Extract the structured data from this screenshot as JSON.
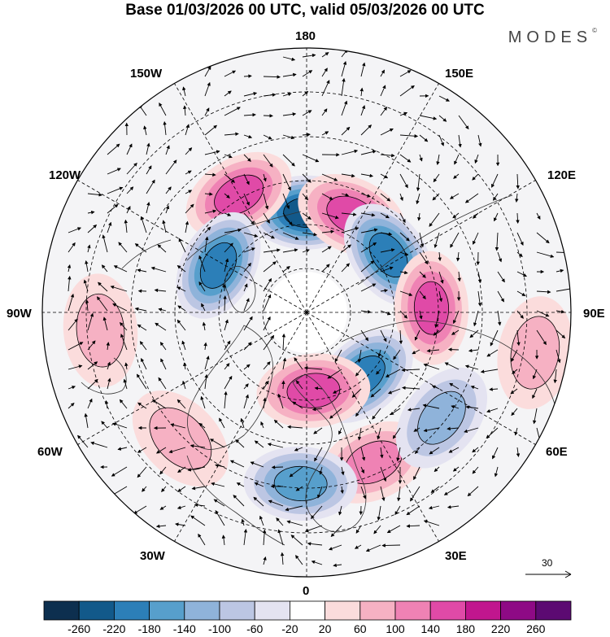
{
  "title": "Base 01/03/2026 00 UTC, valid 05/03/2026 00 UTC",
  "brand": {
    "name": "MODES",
    "mark": "©"
  },
  "longitude_labels": {
    "deg180": "180",
    "deg150w": "150W",
    "deg150e": "150E",
    "deg120w": "120W",
    "deg120e": "120E",
    "deg90w": "90W",
    "deg90e": "90E",
    "deg60w": "60W",
    "deg60e": "60E",
    "deg30w": "30W",
    "deg30e": "30E",
    "deg0": "0"
  },
  "reference_vector": {
    "value": "30"
  },
  "colorbar": {
    "labels": [
      "-260",
      "-220",
      "-180",
      "-140",
      "-100",
      "-60",
      "-20",
      "20",
      "60",
      "100",
      "140",
      "180",
      "220",
      "260"
    ],
    "colors": [
      "#0d2f4f",
      "#12598a",
      "#2c7fb8",
      "#579fcc",
      "#8fb3da",
      "#bcc6e3",
      "#e4e3f1",
      "#ffffff",
      "#fbdcdc",
      "#f6b1c3",
      "#ef82b4",
      "#e04aa7",
      "#c1168e",
      "#8e0a85",
      "#5c0a72"
    ]
  },
  "anomaly_centers": [
    {
      "id": "neg-pacific-north",
      "sign": "negative",
      "strength": -220,
      "lon": 180,
      "lat": 62
    },
    {
      "id": "pos-bering-east",
      "sign": "positive",
      "strength": 140,
      "lon": 155,
      "lat": 60
    },
    {
      "id": "pos-gulf-alaska",
      "sign": "positive",
      "strength": 140,
      "lon": -150,
      "lat": 52
    },
    {
      "id": "neg-canada-west",
      "sign": "negative",
      "strength": -180,
      "lon": -118,
      "lat": 62
    },
    {
      "id": "neg-siberia-east",
      "sign": "negative",
      "strength": -180,
      "lon": 125,
      "lat": 62
    },
    {
      "id": "pos-siberia-central",
      "sign": "positive",
      "strength": 160,
      "lon": 92,
      "lat": 55
    },
    {
      "id": "neg-scandinavia",
      "sign": "negative",
      "strength": -200,
      "lon": 42,
      "lat": 66
    },
    {
      "id": "pos-north-atlantic",
      "sign": "positive",
      "strength": 140,
      "lon": 5,
      "lat": 68
    },
    {
      "id": "pos-europe-south",
      "sign": "positive",
      "strength": 120,
      "lon": 24,
      "lat": 44
    },
    {
      "id": "neg-iberia",
      "sign": "negative",
      "strength": -160,
      "lon": -2,
      "lat": 42
    },
    {
      "id": "neg-caspian",
      "sign": "negative",
      "strength": -100,
      "lon": 52,
      "lat": 42
    },
    {
      "id": "pos-india",
      "sign": "positive",
      "strength": 80,
      "lon": 80,
      "lat": 25
    },
    {
      "id": "pos-atlantic-west",
      "sign": "positive",
      "strength": 60,
      "lon": -45,
      "lat": 40
    },
    {
      "id": "pos-us-east",
      "sign": "positive",
      "strength": 60,
      "lon": -85,
      "lat": 32
    }
  ]
}
